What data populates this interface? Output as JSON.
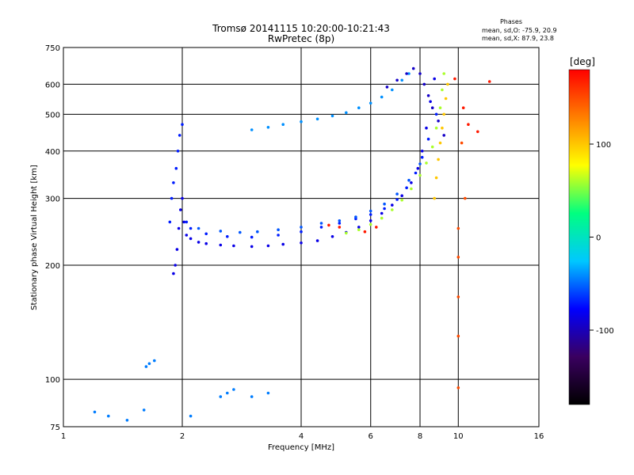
{
  "chart_data": {
    "type": "scatter",
    "title": "Tromsø 20141115 10:20:00-10:21:43",
    "subtitle": "RwPretec (8p)",
    "xlabel": "Frequency [MHz]",
    "ylabel": "Stationary phase Virtual Height [km]",
    "x_scale": "log",
    "y_scale": "log",
    "xlim": [
      1,
      16
    ],
    "ylim": [
      75,
      750
    ],
    "grid": true,
    "xticks": [
      1,
      2,
      4,
      6,
      8,
      10,
      16
    ],
    "xtick_labels": [
      "1",
      "2",
      "4",
      "6",
      "8",
      "10",
      "16"
    ],
    "yticks": [
      75,
      100,
      200,
      300,
      400,
      500,
      600,
      750
    ],
    "ytick_labels": [
      "75",
      "100",
      "200",
      "300",
      "400",
      "500",
      "600",
      "750"
    ],
    "stats": {
      "heading": "Phases",
      "line1": "mean, sd,O: -75.9, 20.9",
      "line2": "mean, sd,X:  87.9, 23.8"
    },
    "colorbar": {
      "label": "[deg]",
      "range": [
        -180,
        180
      ],
      "ticks": [
        100,
        0,
        -100
      ],
      "tick_labels": [
        "100",
        "0",
        "-100"
      ],
      "colors": [
        "#000000",
        "#3a0060",
        "#0000ff",
        "#00c8ff",
        "#00ff80",
        "#ffff00",
        "#ff8000",
        "#ff0000"
      ]
    },
    "series": [
      {
        "color_value": -85,
        "points": [
          [
            1.9,
            190
          ],
          [
            1.92,
            200
          ],
          [
            1.94,
            220
          ],
          [
            1.96,
            250
          ],
          [
            1.98,
            280
          ],
          [
            2.0,
            300
          ],
          [
            2.02,
            260
          ],
          [
            2.05,
            240
          ],
          [
            2.1,
            235
          ],
          [
            2.2,
            230
          ],
          [
            2.3,
            228
          ],
          [
            2.5,
            226
          ],
          [
            2.7,
            225
          ],
          [
            3.0,
            224
          ],
          [
            3.3,
            225
          ],
          [
            3.6,
            227
          ],
          [
            4.0,
            229
          ],
          [
            4.4,
            232
          ],
          [
            4.8,
            238
          ],
          [
            5.2,
            244
          ],
          [
            5.6,
            252
          ],
          [
            6.0,
            262
          ],
          [
            6.4,
            274
          ],
          [
            6.8,
            288
          ],
          [
            7.2,
            305
          ],
          [
            7.6,
            330
          ],
          [
            7.9,
            360
          ],
          [
            8.1,
            400
          ],
          [
            8.3,
            460
          ],
          [
            8.5,
            540
          ],
          [
            8.7,
            620
          ]
        ]
      },
      {
        "color_value": -70,
        "points": [
          [
            1.86,
            260
          ],
          [
            1.88,
            300
          ],
          [
            1.9,
            330
          ],
          [
            1.93,
            360
          ],
          [
            1.95,
            400
          ],
          [
            1.97,
            440
          ],
          [
            2.0,
            470
          ],
          [
            2.05,
            260
          ],
          [
            2.1,
            250
          ],
          [
            2.3,
            242
          ],
          [
            2.6,
            238
          ],
          [
            3.0,
            237
          ],
          [
            3.5,
            240
          ],
          [
            4.0,
            245
          ],
          [
            4.5,
            252
          ],
          [
            5.0,
            258
          ],
          [
            5.5,
            265
          ],
          [
            6.0,
            272
          ],
          [
            6.5,
            282
          ],
          [
            7.0,
            298
          ],
          [
            7.4,
            320
          ],
          [
            7.8,
            350
          ],
          [
            8.1,
            385
          ],
          [
            8.4,
            430
          ],
          [
            8.8,
            500
          ]
        ]
      },
      {
        "color_value": -55,
        "points": [
          [
            2.2,
            250
          ],
          [
            2.5,
            246
          ],
          [
            2.8,
            244
          ],
          [
            3.1,
            245
          ],
          [
            3.5,
            248
          ],
          [
            4.0,
            252
          ],
          [
            4.5,
            258
          ],
          [
            5.0,
            262
          ],
          [
            5.5,
            268
          ],
          [
            6.0,
            278
          ],
          [
            6.5,
            290
          ],
          [
            7.0,
            308
          ],
          [
            7.5,
            335
          ],
          [
            8.0,
            370
          ]
        ]
      },
      {
        "color_value": -40,
        "points": [
          [
            3.0,
            455
          ],
          [
            3.3,
            462
          ],
          [
            3.6,
            470
          ],
          [
            4.0,
            478
          ],
          [
            4.4,
            486
          ],
          [
            4.8,
            495
          ],
          [
            5.2,
            505
          ],
          [
            5.6,
            520
          ],
          [
            6.0,
            535
          ],
          [
            6.4,
            555
          ],
          [
            6.8,
            580
          ],
          [
            7.2,
            615
          ],
          [
            7.5,
            640
          ]
        ]
      },
      {
        "color_value": -95,
        "points": [
          [
            6.6,
            590
          ],
          [
            7.0,
            615
          ],
          [
            7.4,
            640
          ],
          [
            7.7,
            660
          ],
          [
            8.0,
            640
          ],
          [
            8.2,
            600
          ],
          [
            8.4,
            560
          ],
          [
            8.6,
            520
          ],
          [
            8.9,
            480
          ],
          [
            9.2,
            440
          ]
        ]
      },
      {
        "color_value": 60,
        "points": [
          [
            5.2,
            243
          ],
          [
            5.6,
            248
          ],
          [
            6.0,
            256
          ],
          [
            6.4,
            266
          ],
          [
            6.8,
            280
          ],
          [
            7.2,
            297
          ],
          [
            7.6,
            318
          ],
          [
            8.0,
            345
          ],
          [
            8.3,
            372
          ],
          [
            8.6,
            410
          ],
          [
            8.8,
            460
          ],
          [
            9.0,
            520
          ],
          [
            9.1,
            580
          ],
          [
            9.2,
            640
          ]
        ]
      },
      {
        "color_value": 100,
        "points": [
          [
            8.7,
            300
          ],
          [
            8.8,
            340
          ],
          [
            8.9,
            380
          ],
          [
            9.0,
            420
          ],
          [
            9.1,
            460
          ],
          [
            9.2,
            500
          ],
          [
            9.3,
            550
          ],
          [
            9.4,
            600
          ]
        ]
      },
      {
        "color_value": 170,
        "points": [
          [
            4.7,
            255
          ],
          [
            5.0,
            252
          ],
          [
            5.8,
            245
          ],
          [
            6.2,
            252
          ],
          [
            9.8,
            620
          ],
          [
            10.3,
            520
          ],
          [
            10.6,
            470
          ],
          [
            11.2,
            450
          ],
          [
            12.0,
            610
          ]
        ]
      },
      {
        "color_value": -45,
        "points": [
          [
            1.2,
            82
          ],
          [
            1.3,
            80
          ],
          [
            1.45,
            78
          ],
          [
            1.6,
            83
          ],
          [
            1.62,
            108
          ],
          [
            1.65,
            110
          ],
          [
            1.7,
            112
          ],
          [
            2.5,
            90
          ],
          [
            2.6,
            92
          ],
          [
            2.7,
            94
          ],
          [
            3.0,
            90
          ],
          [
            3.3,
            92
          ],
          [
            2.1,
            80
          ]
        ]
      },
      {
        "color_value": 150,
        "points": [
          [
            10.0,
            95
          ],
          [
            10.0,
            130
          ],
          [
            10.0,
            165
          ],
          [
            10.0,
            210
          ],
          [
            10.0,
            250
          ],
          [
            10.4,
            300
          ],
          [
            10.2,
            420
          ]
        ]
      }
    ]
  }
}
